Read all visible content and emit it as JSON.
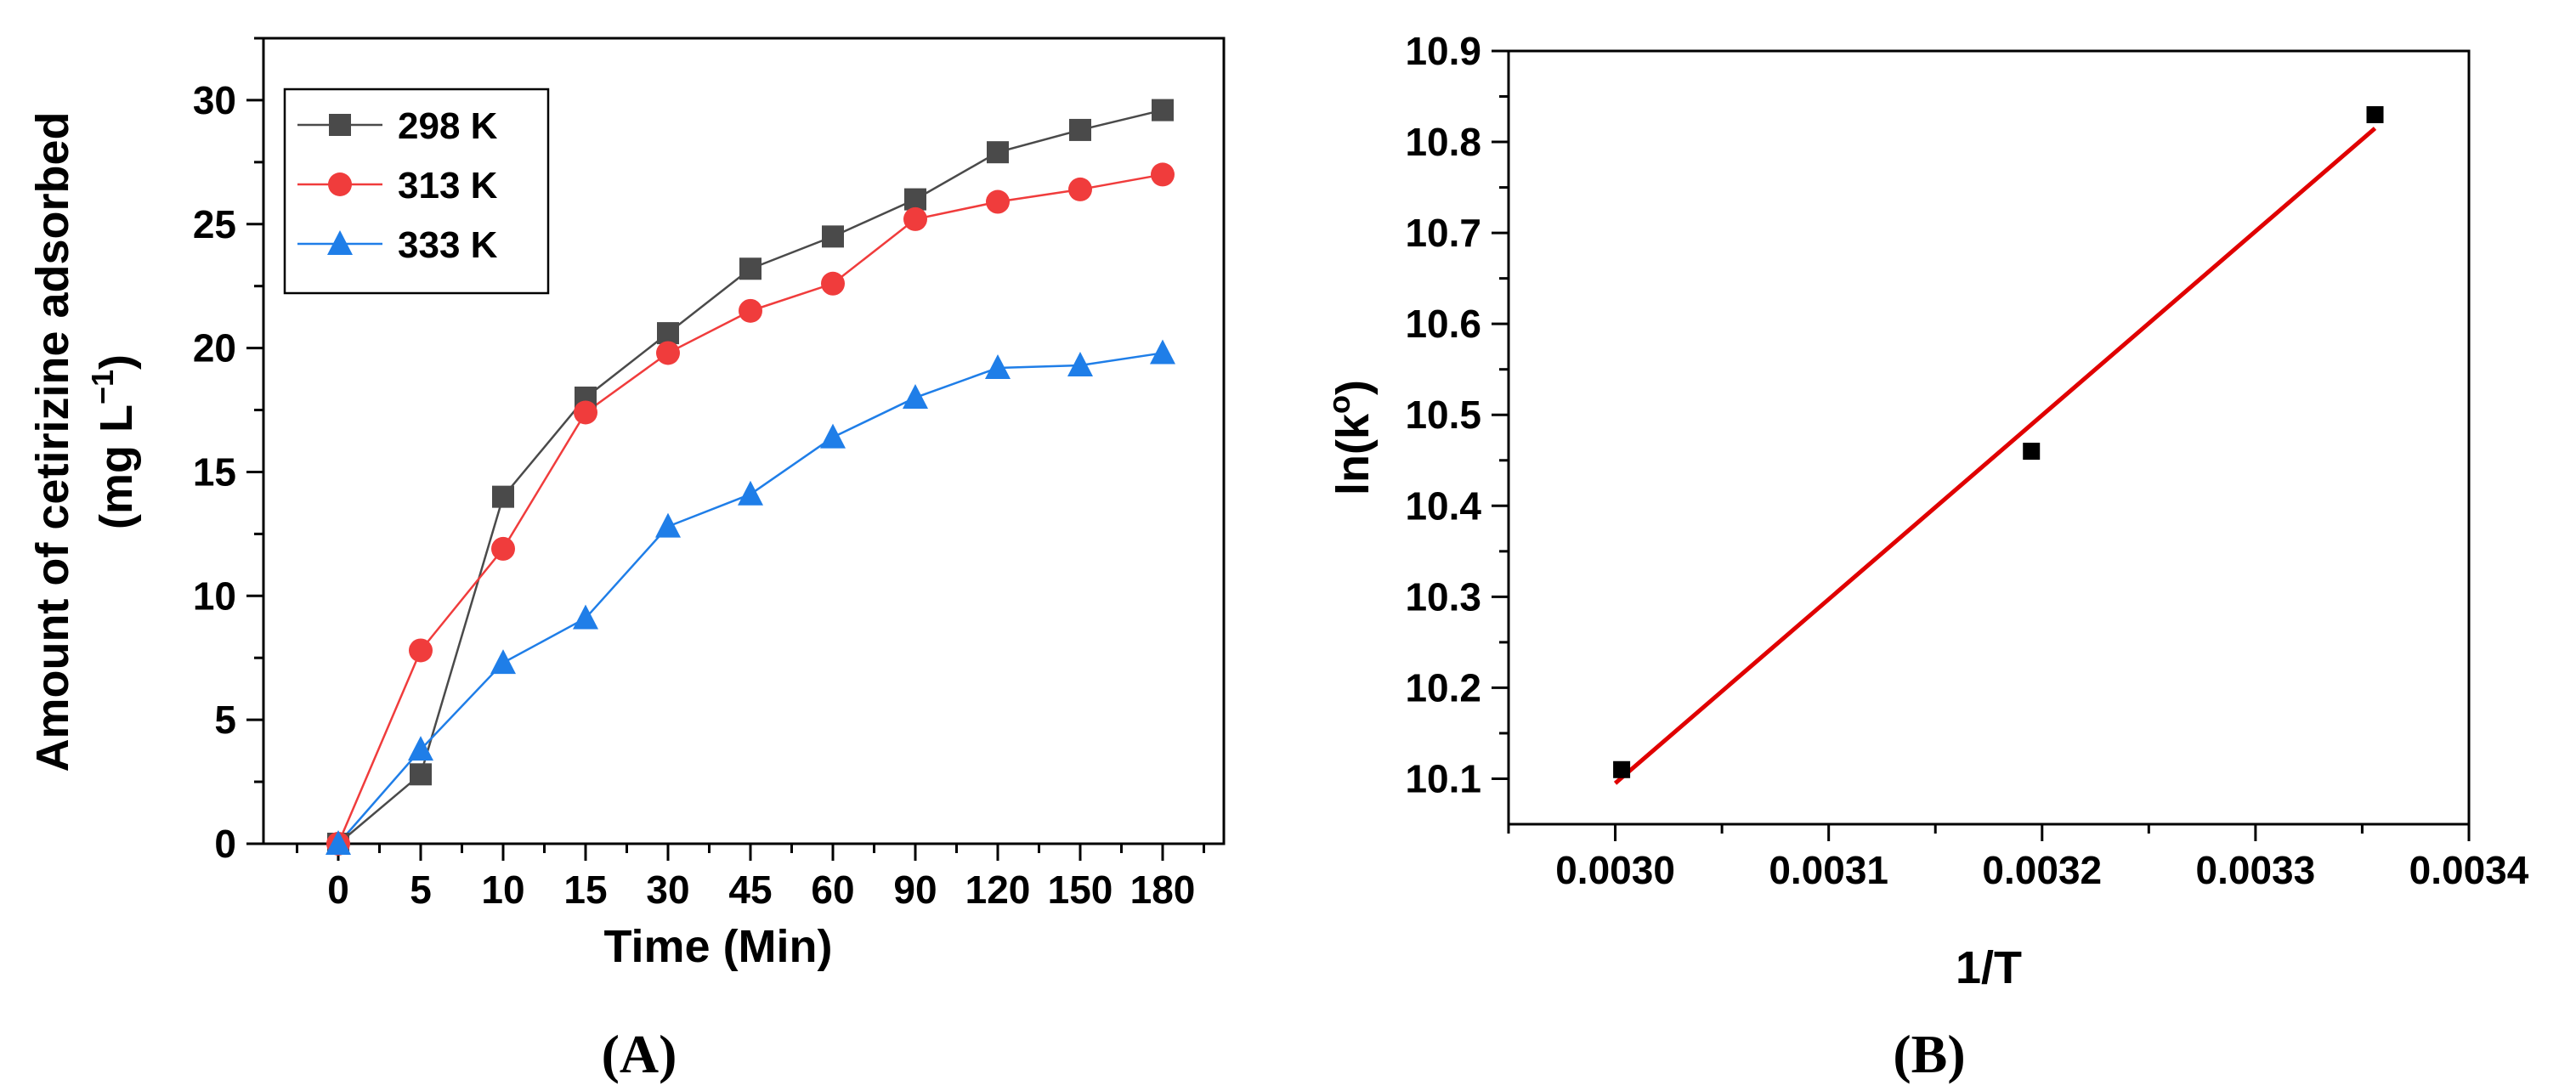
{
  "chart_data": [
    {
      "type": "line",
      "panel_label": "(A)",
      "xlabel": "Time (Min)",
      "ylabel_line1": "Amount of cetirizine adsorbed",
      "ylabel_line2": "(mg L",
      "ylabel_sup": "−1",
      "ylabel_close": ")",
      "categories": [
        "0",
        "5",
        "10",
        "15",
        "30",
        "45",
        "60",
        "90",
        "120",
        "150",
        "180"
      ],
      "ylim": [
        0,
        32.5
      ],
      "yticks": [
        "0",
        "5",
        "10",
        "15",
        "20",
        "25",
        "30"
      ],
      "legend_position": "top-left",
      "series": [
        {
          "name": "298 K",
          "color": "#4a4a4a",
          "marker": "square",
          "values": [
            0,
            2.8,
            14.0,
            18.0,
            20.6,
            23.2,
            24.5,
            26.0,
            27.9,
            28.8,
            29.6
          ]
        },
        {
          "name": "313 K",
          "color": "#f03c3c",
          "marker": "circle",
          "values": [
            0,
            7.8,
            11.9,
            17.4,
            19.8,
            21.5,
            22.6,
            25.2,
            25.9,
            26.4,
            27.0
          ]
        },
        {
          "name": "333 K",
          "color": "#1f7ee8",
          "marker": "triangle",
          "values": [
            0,
            3.8,
            7.3,
            9.1,
            12.8,
            14.1,
            16.4,
            18.0,
            19.2,
            19.3,
            19.8
          ]
        }
      ]
    },
    {
      "type": "scatter",
      "panel_label": "(B)",
      "xlabel": "1/T",
      "ylabel": "ln(k",
      "ylabel_sup": "o",
      "ylabel_close": ")",
      "xlim": [
        0.00295,
        0.0034
      ],
      "ylim": [
        10.05,
        10.9
      ],
      "xticks": [
        "0.0030",
        "0.0031",
        "0.0032",
        "0.0033",
        "0.0034"
      ],
      "yticks": [
        "10.1",
        "10.2",
        "10.3",
        "10.4",
        "10.5",
        "10.6",
        "10.7",
        "10.8",
        "10.9"
      ],
      "points": {
        "x": [
          0.003003,
          0.003195,
          0.003356
        ],
        "y": [
          10.11,
          10.46,
          10.83
        ],
        "color": "#000000",
        "marker": "square"
      },
      "fit_line": {
        "x": [
          0.003,
          0.003356
        ],
        "y": [
          10.095,
          10.815
        ],
        "color": "#e00000"
      }
    }
  ]
}
